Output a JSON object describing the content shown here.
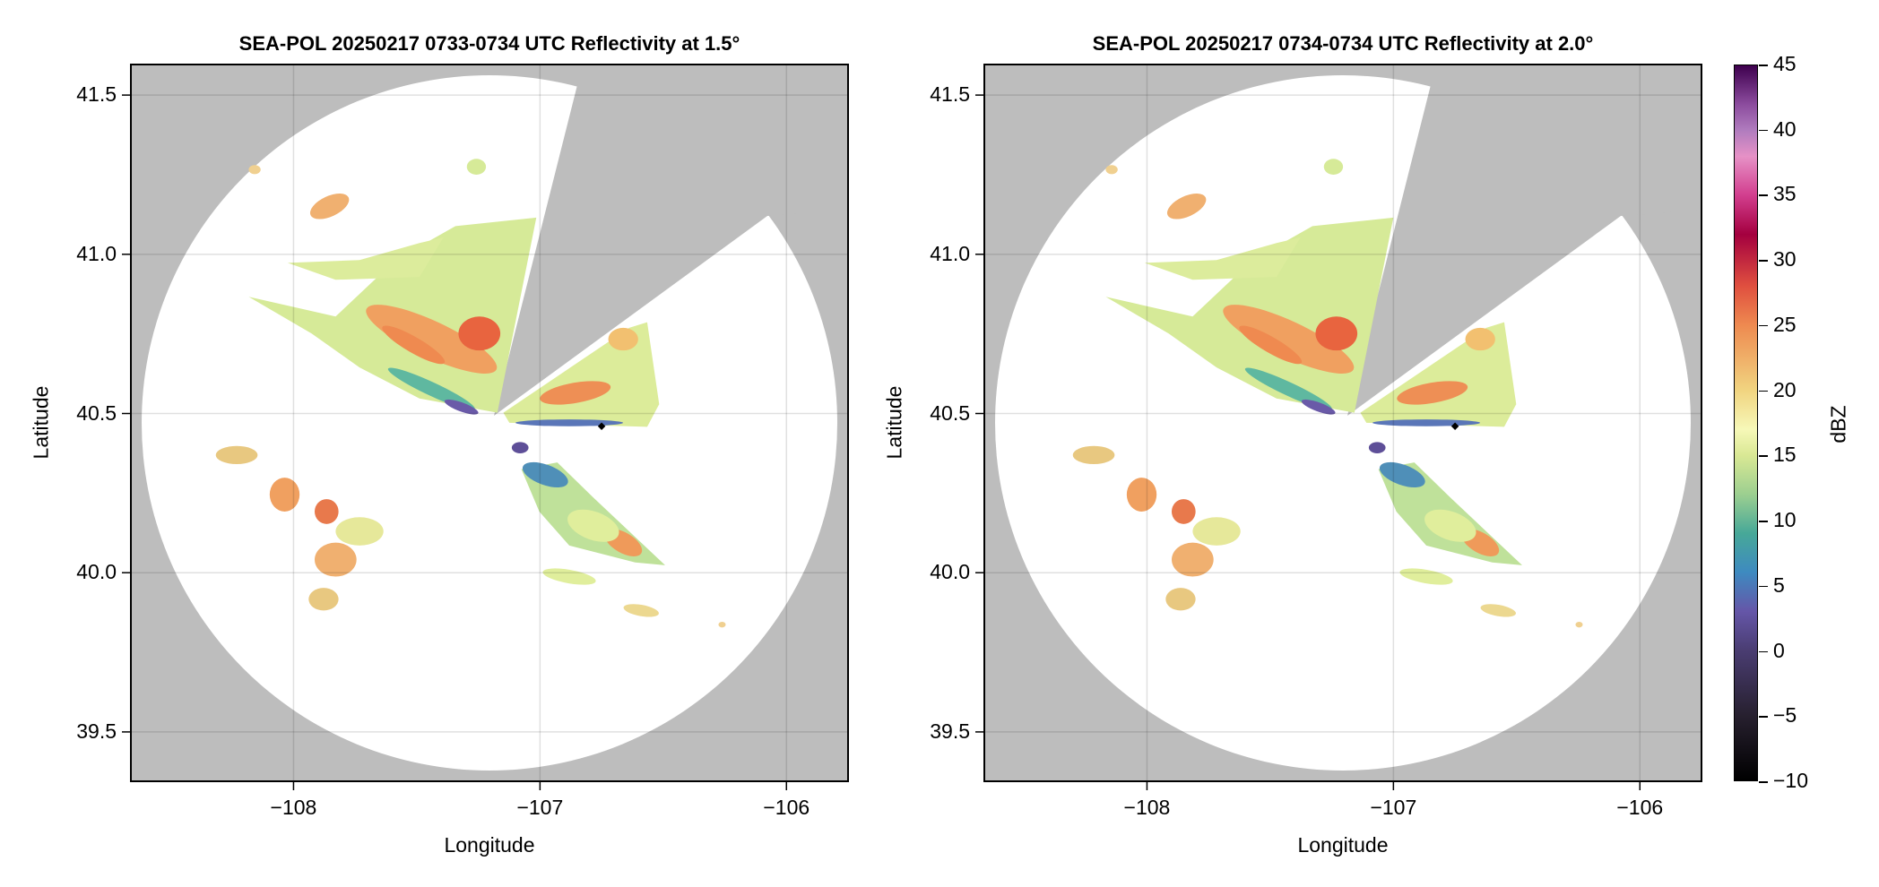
{
  "chart_data": [
    {
      "type": "heatmap",
      "title": "SEA-POL 20250217 0733-0734 UTC Reflectivity at 1.5°",
      "xlabel": "Longitude",
      "ylabel": "Latitude",
      "xlim": [
        -108.66,
        -105.75
      ],
      "ylim": [
        39.345,
        41.596
      ],
      "xticks": [
        -108,
        -107,
        -106
      ],
      "xtick_labels": [
        "−108",
        "−107",
        "−106"
      ],
      "yticks": [
        39.5,
        40.0,
        40.5,
        41.0,
        41.5
      ],
      "ytick_labels": [
        "39.5",
        "40.0",
        "40.5",
        "41.0",
        "41.5"
      ],
      "grid": true,
      "radar_center": [
        -107.18,
        40.48
      ],
      "marker": [
        -106.75,
        40.46
      ],
      "elevation_deg": 1.5
    },
    {
      "type": "heatmap",
      "title": "SEA-POL 20250217 0734-0734 UTC Reflectivity at 2.0°",
      "xlabel": "Longitude",
      "ylabel": "Latitude",
      "xlim": [
        -108.66,
        -105.75
      ],
      "ylim": [
        39.345,
        41.596
      ],
      "xticks": [
        -108,
        -107,
        -106
      ],
      "xtick_labels": [
        "−108",
        "−107",
        "−106"
      ],
      "yticks": [
        39.5,
        40.0,
        40.5,
        41.0,
        41.5
      ],
      "ytick_labels": [
        "39.5",
        "40.0",
        "40.5",
        "41.0",
        "41.5"
      ],
      "grid": true,
      "radar_center": [
        -107.18,
        40.48
      ],
      "marker": [
        -106.75,
        40.46
      ],
      "elevation_deg": 2.0
    }
  ],
  "colorbar": {
    "label": "dBZ",
    "range": [
      -10,
      45
    ],
    "ticks": [
      -10,
      -5,
      0,
      5,
      10,
      15,
      20,
      25,
      30,
      35,
      40,
      45
    ],
    "tick_labels": [
      "−10",
      "−5",
      "0",
      "5",
      "10",
      "15",
      "20",
      "25",
      "30",
      "35",
      "40",
      "45"
    ],
    "stops": [
      [
        -10,
        "#000000"
      ],
      [
        -5,
        "#27202f"
      ],
      [
        0,
        "#4a3d72"
      ],
      [
        3,
        "#6556a8"
      ],
      [
        6,
        "#3e8ac0"
      ],
      [
        9,
        "#47a898"
      ],
      [
        12,
        "#9ccf90"
      ],
      [
        15,
        "#d9e894"
      ],
      [
        17,
        "#f6f8b8"
      ],
      [
        20,
        "#f1d480"
      ],
      [
        25,
        "#ee8a50"
      ],
      [
        28,
        "#e0503f"
      ],
      [
        32,
        "#a4003f"
      ],
      [
        35,
        "#d23e8e"
      ],
      [
        38,
        "#e691c6"
      ],
      [
        40,
        "#b07cbe"
      ],
      [
        42,
        "#8c4c9e"
      ],
      [
        45,
        "#3e004e"
      ]
    ]
  },
  "colors": {
    "outside": "#bdbdbd",
    "coverage": "#ffffff"
  }
}
